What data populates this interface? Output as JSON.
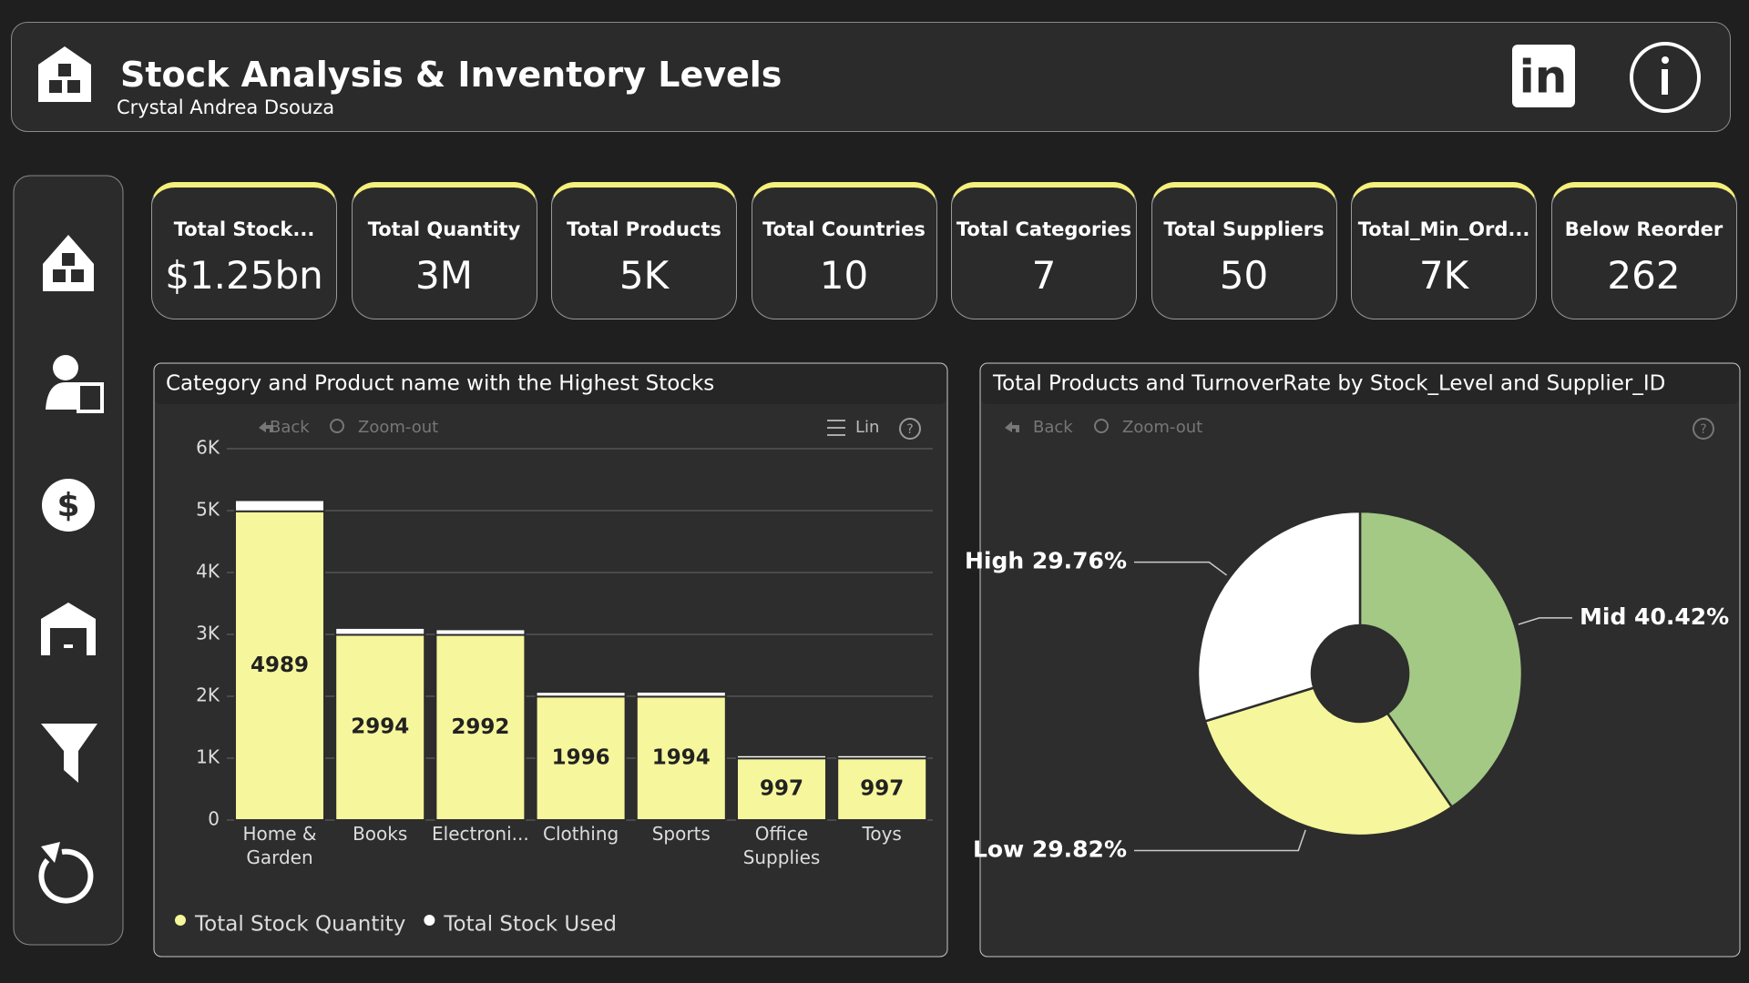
{
  "header": {
    "title": "Stock Analysis & Inventory Levels",
    "subtitle": "Crystal Andrea Dsouza"
  },
  "kpis": [
    {
      "label": "Total Stock...",
      "value": "$1.25bn"
    },
    {
      "label": "Total Quantity",
      "value": "3M"
    },
    {
      "label": "Total Products",
      "value": "5K"
    },
    {
      "label": "Total Countries",
      "value": 10
    },
    {
      "label": "Total Categories",
      "value": 7
    },
    {
      "label": "Total Suppliers",
      "value": 50
    },
    {
      "label": "Total_Min_Ord...",
      "value": "7K"
    },
    {
      "label": "Below Reorder",
      "value": 262
    }
  ],
  "chart_data": [
    {
      "type": "bar",
      "stacked": true,
      "title": "Category and Product name with the Highest Stocks",
      "toolbar": [
        "Back",
        "Zoom-out",
        "Lin"
      ],
      "categories": [
        "Home & Garden",
        "Books",
        "Electroni...",
        "Clothing",
        "Sports",
        "Office Supplies",
        "Toys"
      ],
      "series": [
        {
          "name": "Total Stock Quantity",
          "color": "#f6f69c",
          "values": [
            4989,
            2994,
            2992,
            1996,
            1994,
            997,
            997
          ]
        },
        {
          "name": "Total Stock Used",
          "color": "#ffffff",
          "values": [
            180,
            110,
            90,
            75,
            80,
            50,
            50
          ]
        }
      ],
      "ylim": [
        0,
        6000
      ],
      "yticks": [
        0,
        {
          "value": 1000,
          "label": "1K"
        },
        {
          "value": 2000,
          "label": "2K"
        },
        {
          "value": 3000,
          "label": "3K"
        },
        {
          "value": 4000,
          "label": "4K"
        },
        {
          "value": 5000,
          "label": "5K"
        },
        {
          "value": 6000,
          "label": "6K"
        }
      ],
      "grid": true,
      "legend": "bottom-left"
    },
    {
      "type": "donut",
      "title": "Total Products and TurnoverRate by Stock_Level and Supplier_ID",
      "toolbar": [
        "Back",
        "Zoom-out"
      ],
      "categories": [
        "Mid",
        "Low",
        "High"
      ],
      "values": [
        40.42,
        29.82,
        29.76
      ],
      "value_labels": [
        "Mid 40.42%",
        "Low 29.82%",
        "High 29.76%"
      ],
      "colors": [
        "#a3c985",
        "#f6f69c",
        "#ffffff"
      ]
    }
  ]
}
